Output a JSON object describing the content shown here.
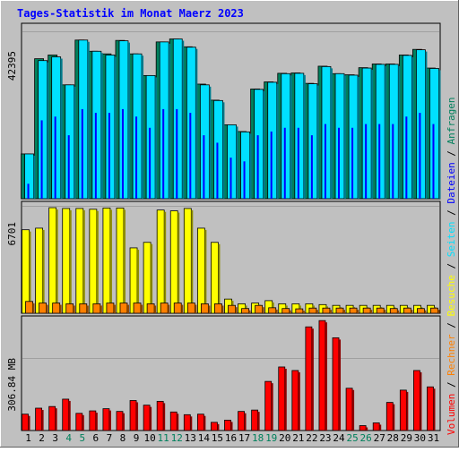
{
  "chart_data": [
    {
      "type": "bar",
      "title": "Tages-Statistik im Monat Maerz 2023",
      "categories": [
        "1",
        "2",
        "3",
        "4",
        "5",
        "6",
        "7",
        "8",
        "9",
        "10",
        "11",
        "12",
        "13",
        "14",
        "15",
        "16",
        "17",
        "18",
        "19",
        "20",
        "21",
        "22",
        "23",
        "24",
        "25",
        "26",
        "27",
        "28",
        "29",
        "30",
        "31"
      ],
      "weekend_days": [
        "4",
        "5",
        "11",
        "12",
        "18",
        "19",
        "25",
        "26"
      ],
      "y_tick_label": "42395",
      "ylim": [
        0,
        47000
      ],
      "series": [
        {
          "name": "Anfragen",
          "color": "#00805c",
          "values": [
            12000,
            37500,
            38500,
            30500,
            42500,
            39500,
            38800,
            42400,
            38800,
            33000,
            42000,
            42800,
            40700,
            30700,
            26400,
            19800,
            18000,
            29400,
            31300,
            33600,
            33700,
            30900,
            35500,
            33500,
            33200,
            35100,
            36100,
            36100,
            38500,
            40000,
            35000
          ]
        },
        {
          "name": "Dateien",
          "color": "#0000ff",
          "values": [
            4000,
            21000,
            22000,
            17000,
            24000,
            23000,
            23000,
            24000,
            22000,
            19000,
            24000,
            24000,
            23000,
            17000,
            15000,
            11000,
            10000,
            17000,
            18000,
            19000,
            19000,
            17000,
            20000,
            19000,
            19000,
            20000,
            20000,
            20000,
            22000,
            23000,
            20000
          ]
        },
        {
          "name": "Seiten",
          "color": "#00e0ff",
          "values": [
            12000,
            37000,
            38000,
            30500,
            42500,
            39500,
            38500,
            42300,
            38800,
            33000,
            42000,
            42800,
            40600,
            30500,
            26300,
            19800,
            17900,
            29300,
            31200,
            33500,
            33600,
            30800,
            35400,
            33500,
            33100,
            35000,
            36000,
            36000,
            38400,
            39900,
            34900
          ]
        }
      ]
    },
    {
      "type": "bar",
      "categories": [
        "1",
        "2",
        "3",
        "4",
        "5",
        "6",
        "7",
        "8",
        "9",
        "10",
        "11",
        "12",
        "13",
        "14",
        "15",
        "16",
        "17",
        "18",
        "19",
        "20",
        "21",
        "22",
        "23",
        "24",
        "25",
        "26",
        "27",
        "28",
        "29",
        "30",
        "31"
      ],
      "y_tick_label": "6701",
      "ylim": [
        0,
        7100
      ],
      "series": [
        {
          "name": "Besuche",
          "color": "#ffff00",
          "values": [
            5300,
            5400,
            6700,
            6650,
            6650,
            6600,
            6680,
            6680,
            4150,
            4500,
            6550,
            6500,
            6650,
            5400,
            4500,
            900,
            600,
            650,
            800,
            600,
            600,
            600,
            550,
            500,
            500,
            500,
            500,
            500,
            500,
            500,
            500
          ]
        },
        {
          "name": "Rechner",
          "color": "#ff8000",
          "values": [
            750,
            650,
            650,
            600,
            600,
            600,
            650,
            650,
            650,
            600,
            650,
            650,
            650,
            600,
            600,
            500,
            300,
            500,
            350,
            300,
            280,
            330,
            330,
            330,
            330,
            330,
            330,
            300,
            330,
            300,
            330
          ]
        }
      ]
    },
    {
      "type": "bar",
      "categories": [
        "1",
        "2",
        "3",
        "4",
        "5",
        "6",
        "7",
        "8",
        "9",
        "10",
        "11",
        "12",
        "13",
        "14",
        "15",
        "16",
        "17",
        "18",
        "19",
        "20",
        "21",
        "22",
        "23",
        "24",
        "25",
        "26",
        "27",
        "28",
        "29",
        "30",
        "31"
      ],
      "y_tick_label": "306.84 MB",
      "ylim": [
        0,
        420
      ],
      "series": [
        {
          "name": "Volumen",
          "color": "#ff0000",
          "values": [
            60,
            82,
            88,
            115,
            63,
            72,
            80,
            70,
            110,
            93,
            107,
            68,
            58,
            60,
            30,
            38,
            70,
            75,
            180,
            233,
            220,
            380,
            403,
            340,
            155,
            18,
            28,
            103,
            148,
            220,
            160
          ]
        }
      ]
    }
  ],
  "legend_order": [
    "Volumen",
    "Rechner",
    "Besuche",
    "Seiten",
    "Dateien",
    "Anfragen"
  ],
  "legend_separator": " / ",
  "colors": {
    "background": "#c0c0c0",
    "title": "#0000ff",
    "weekday_label": "#000000",
    "weekend_label": "#00805c",
    "grid": "#a0a0a0",
    "panel_border": "#000000"
  }
}
